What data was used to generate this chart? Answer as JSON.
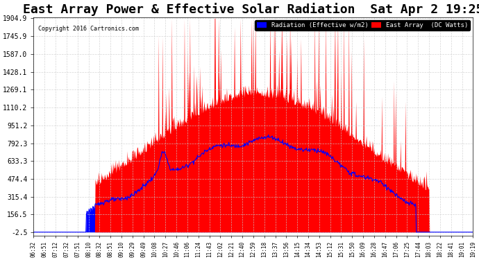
{
  "title": "East Array Power & Effective Solar Radiation  Sat Apr 2 19:25",
  "copyright": "Copyright 2016 Cartronics.com",
  "legend_blue": "Radiation (Effective w/m2)",
  "legend_red": "East Array  (DC Watts)",
  "yticks": [
    1904.9,
    1745.9,
    1587.0,
    1428.1,
    1269.1,
    1110.2,
    951.2,
    792.3,
    633.3,
    474.4,
    315.4,
    156.5,
    -2.5
  ],
  "ymin": -2.5,
  "ymax": 1904.9,
  "bg_color": "#ffffff",
  "plot_bg_color": "#ffffff",
  "grid_color": "#cccccc",
  "blue_color": "#0000ff",
  "red_color": "#ff0000",
  "title_fontsize": 13,
  "xtick_labels": [
    "06:32",
    "06:51",
    "07:12",
    "07:32",
    "07:51",
    "08:10",
    "08:32",
    "08:51",
    "09:10",
    "09:29",
    "09:49",
    "10:08",
    "10:27",
    "10:46",
    "11:06",
    "11:24",
    "11:43",
    "12:02",
    "12:21",
    "12:40",
    "12:59",
    "13:18",
    "13:37",
    "13:56",
    "14:15",
    "14:34",
    "14:53",
    "15:12",
    "15:31",
    "15:50",
    "16:09",
    "16:28",
    "16:47",
    "17:06",
    "17:25",
    "17:44",
    "18:03",
    "18:22",
    "18:41",
    "19:01",
    "19:19"
  ]
}
